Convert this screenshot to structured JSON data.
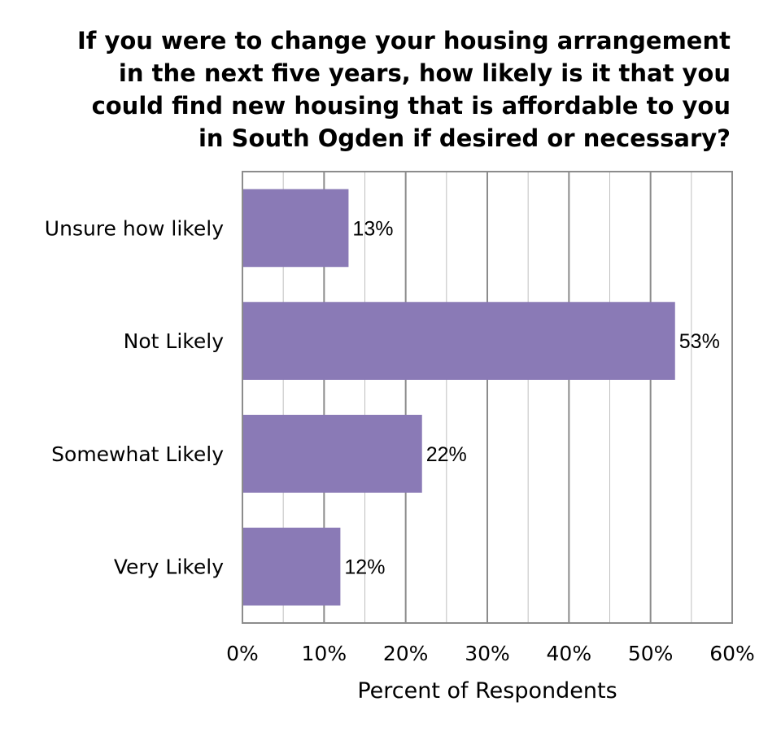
{
  "chart_data": {
    "type": "bar",
    "orientation": "horizontal",
    "title_lines": [
      "If you were to change your housing arrangement",
      "in the next five years, how likely is it that you",
      "could find new housing that is affordable to you",
      "in South Ogden if desired or necessary?"
    ],
    "categories": [
      "Unsure how likely",
      "Not Likely",
      "Somewhat Likely",
      "Very Likely"
    ],
    "values": [
      13,
      53,
      22,
      12
    ],
    "data_labels": [
      "13%",
      "53%",
      "22%",
      "12%"
    ],
    "xlabel": "Percent of Respondents",
    "ylabel": "",
    "xlim": [
      0,
      60
    ],
    "x_ticks": [
      0,
      10,
      20,
      30,
      40,
      50,
      60
    ],
    "x_tick_labels": [
      "0%",
      "10%",
      "20%",
      "30%",
      "40%",
      "50%",
      "60%"
    ],
    "grid": true,
    "legend": "none",
    "colors": {
      "bar": "#8A7AB6",
      "gridline_major": "#8C8C8C",
      "gridline_minor": "#BFBFBF",
      "frame": "#8C8C8C"
    }
  }
}
